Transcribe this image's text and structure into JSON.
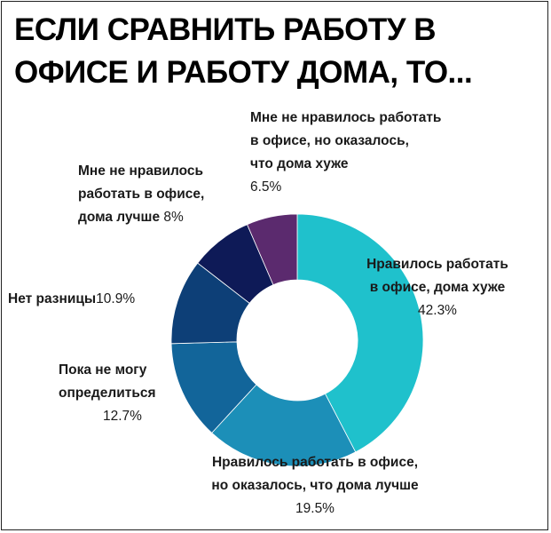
{
  "title_lines": [
    "ЕСЛИ СРАВНИТЬ РАБОТУ В",
    "ОФИСЕ И РАБОТУ ДОМА, ТО..."
  ],
  "chart_data": {
    "type": "pie",
    "subtype": "donut",
    "title": "ЕСЛИ СРАВНИТЬ РАБОТУ В ОФИСЕ И РАБОТУ ДОМА, ТО...",
    "slices": [
      {
        "label_lines": [
          "Нравилось работать",
          "в офисе, дома хуже"
        ],
        "value": 42.3,
        "pct": "42.3%",
        "color": "#1fc1cc"
      },
      {
        "label_lines": [
          "Нравилось работать в офисе,",
          "но оказалось, что дома лучше"
        ],
        "value": 19.5,
        "pct": "19.5%",
        "color": "#1c8fb8"
      },
      {
        "label_lines": [
          "Пока не могу",
          "определиться"
        ],
        "value": 12.7,
        "pct": "12.7%",
        "color": "#12659a"
      },
      {
        "label_lines": [
          "Нет разницы"
        ],
        "value": 10.9,
        "pct": "10.9%",
        "color": "#0d3f77"
      },
      {
        "label_lines": [
          "Мне не нравилось",
          "работать в офисе,",
          "дома лучше"
        ],
        "value": 8.0,
        "pct": "8%",
        "color": "#0e1a57"
      },
      {
        "label_lines": [
          "Мне не нравилось работать",
          "в офисе, но оказалось,",
          "что дома хуже"
        ],
        "value": 6.5,
        "pct": "6.5%",
        "color": "#5b2a6e"
      }
    ]
  }
}
